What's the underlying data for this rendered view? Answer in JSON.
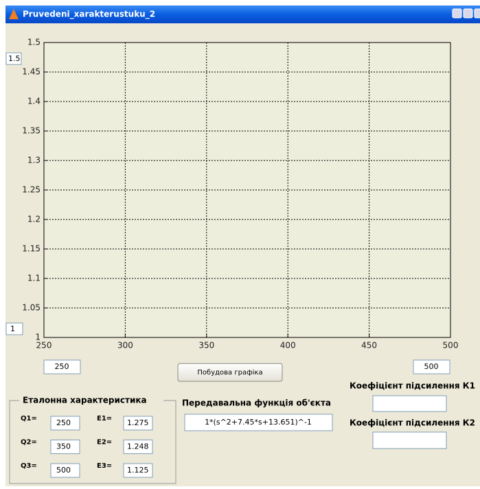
{
  "window": {
    "title": "Pruvedeni_xarakterustuku_2"
  },
  "plot": {
    "xlim": [
      250,
      500
    ],
    "ylim": [
      1,
      1.5
    ],
    "xticks": [
      250,
      300,
      350,
      400,
      450,
      500
    ],
    "yticks": [
      1,
      1.05,
      1.1,
      1.15,
      1.2,
      1.25,
      1.3,
      1.35,
      1.4,
      1.45,
      1.5
    ],
    "grid": true
  },
  "limits": {
    "ymax": "1.5",
    "ymin": "1",
    "xmin": "250",
    "xmax": "500"
  },
  "button": "Побудова графіка",
  "reference": {
    "title": "Еталонна характеристика",
    "rows": [
      {
        "q_label": "Q1=",
        "q": "250",
        "e_label": "E1=",
        "e": "1.275"
      },
      {
        "q_label": "Q2=",
        "q": "350",
        "e_label": "E2=",
        "e": "1.248"
      },
      {
        "q_label": "Q3=",
        "q": "500",
        "e_label": "E3=",
        "e": "1.125"
      }
    ]
  },
  "transfer": {
    "label": "Передавальна функція об'єкта",
    "value": "1*(s^2+7.45*s+13.651)^-1"
  },
  "gains": [
    {
      "label": "Коефіцієнт підсилення К1"
    },
    {
      "label": "Коефіцієнт підсилення К2"
    }
  ]
}
